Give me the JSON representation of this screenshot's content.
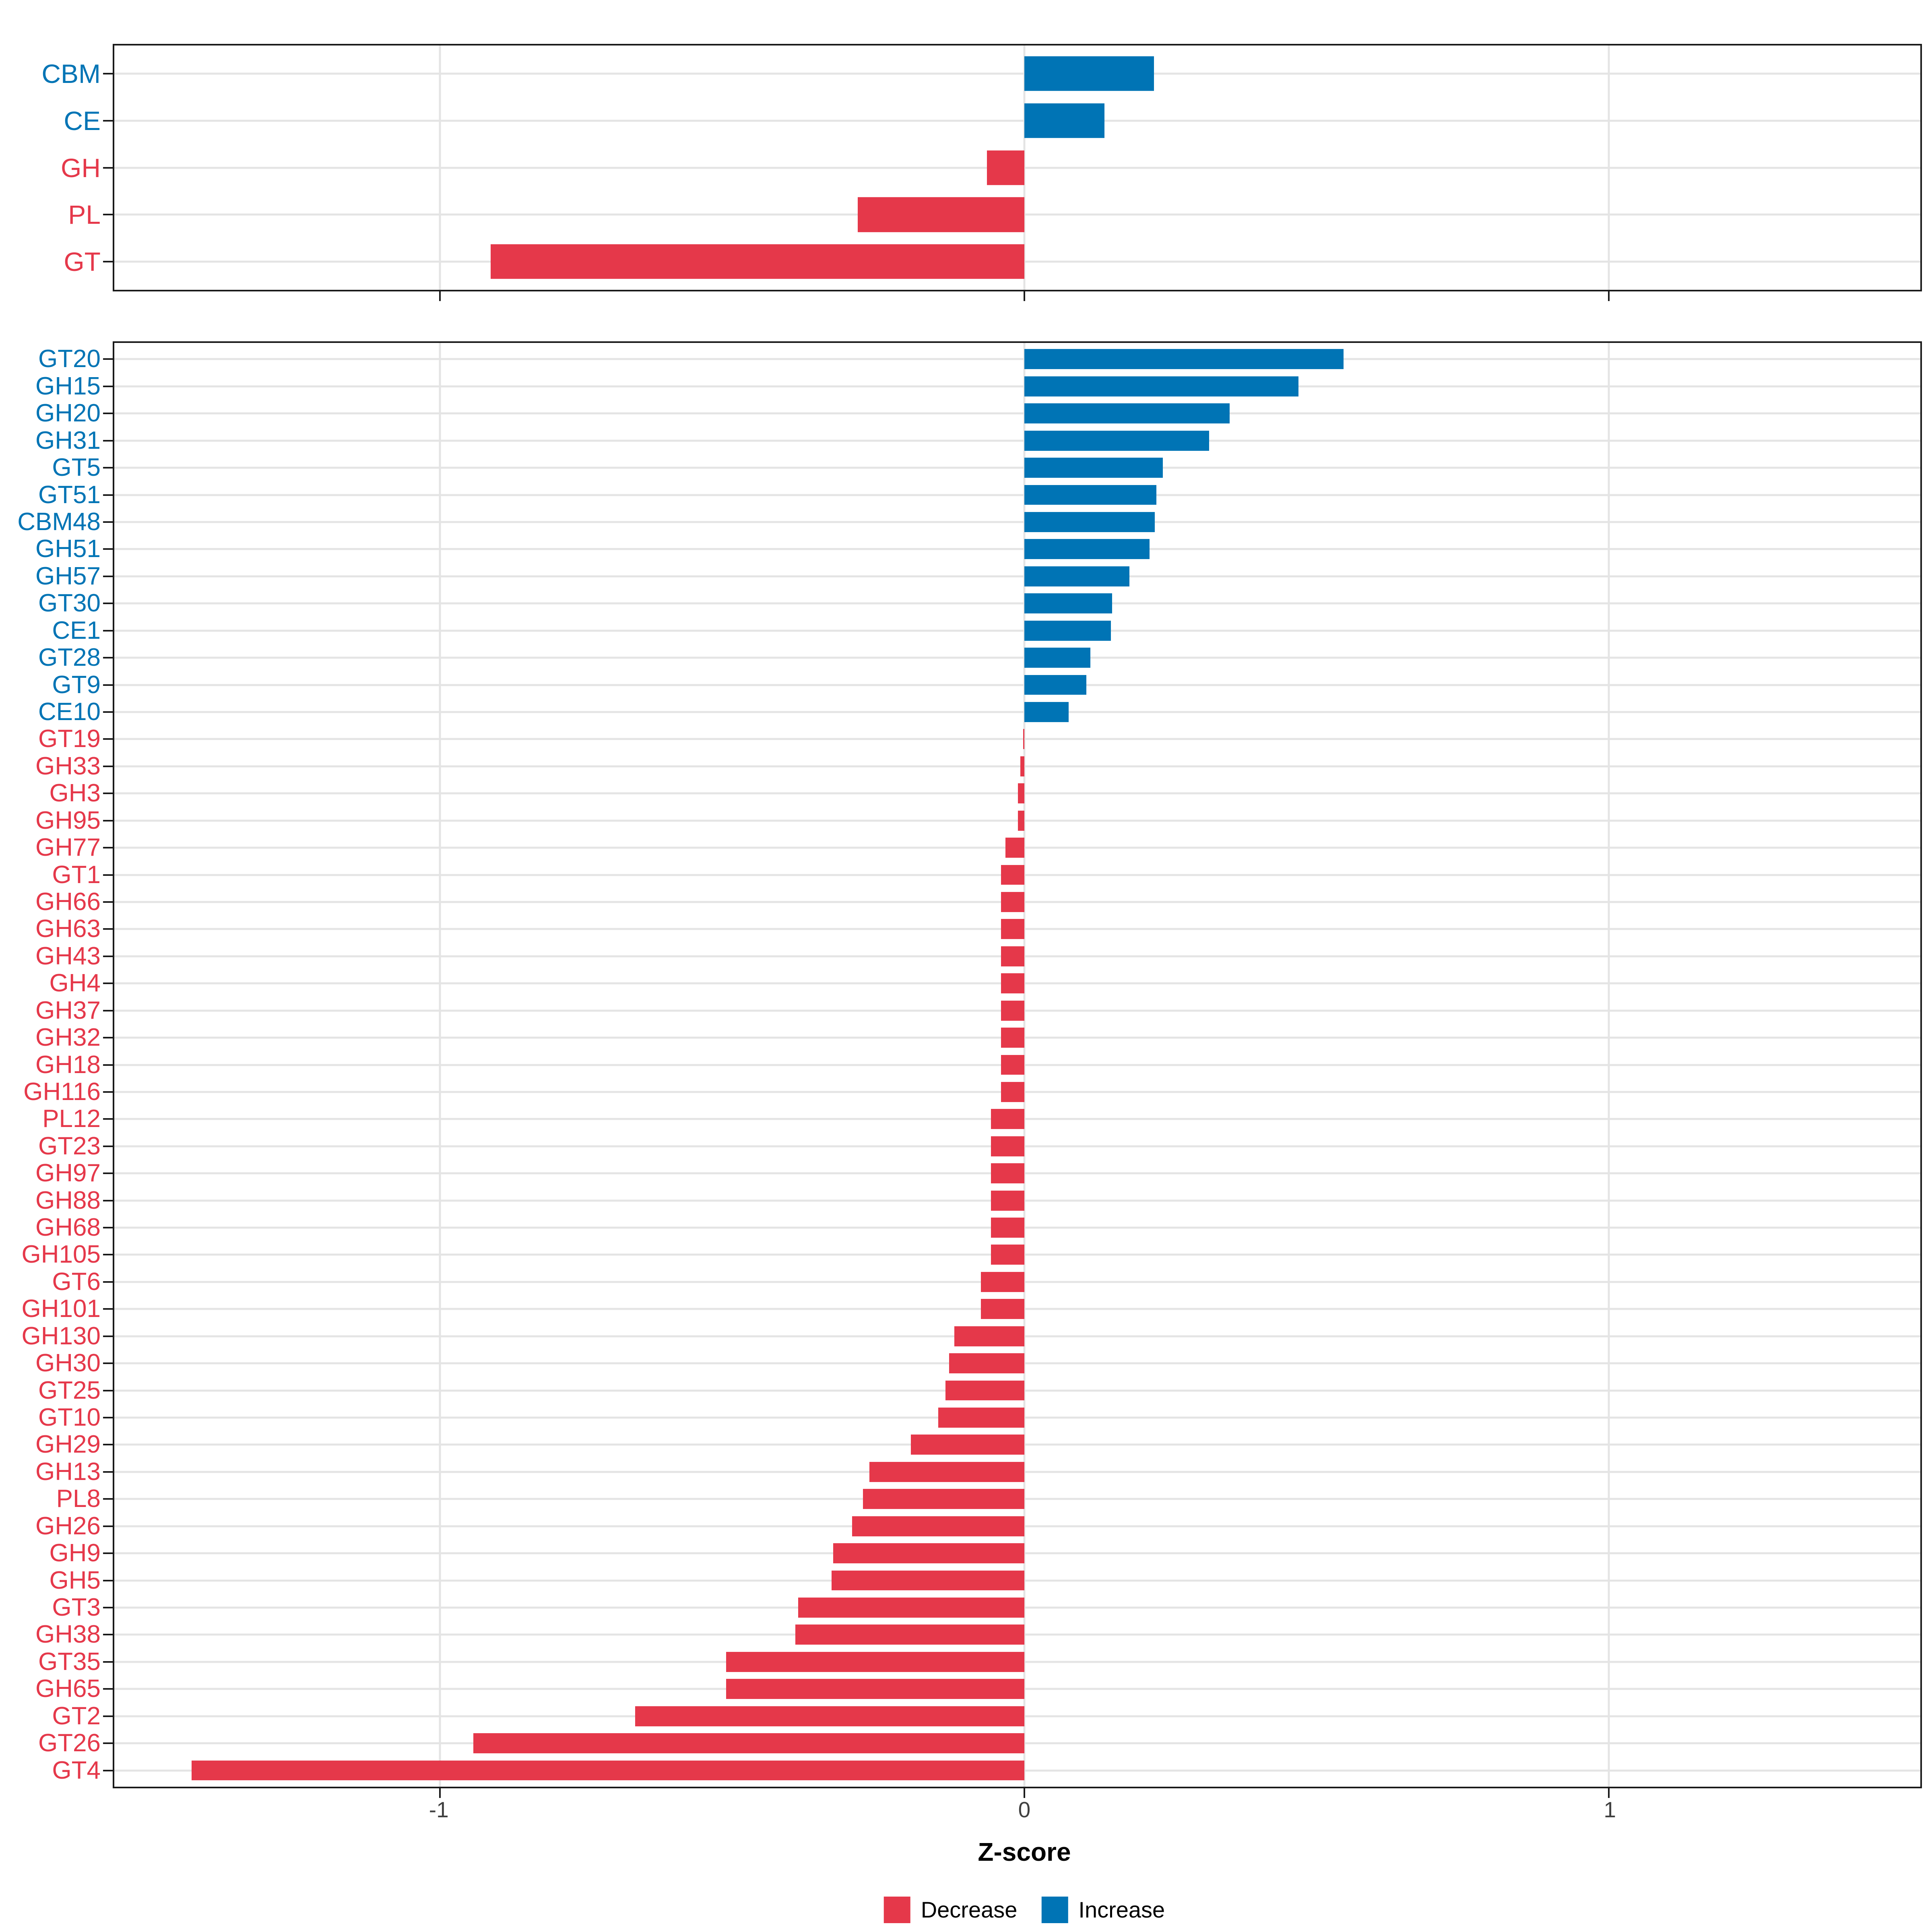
{
  "colors": {
    "decrease": "#E5384A",
    "increase": "#0074B5",
    "grid": "#E4E4E4",
    "axis_line": "#1a1a1a",
    "x_tick_text": "#404040",
    "title_text": "#000000"
  },
  "axis": {
    "label": "Z-score",
    "ticks": [
      -1,
      0,
      1
    ],
    "tick_labels": [
      "-1",
      "0",
      "1"
    ],
    "xmin": -1.557,
    "xmax": 1.533
  },
  "legend": [
    {
      "label": "Decrease",
      "key": "decrease"
    },
    {
      "label": "Increase",
      "key": "increase"
    }
  ],
  "chart_data": [
    {
      "type": "bar",
      "orientation": "horizontal",
      "panel": "families",
      "title": "",
      "xlabel": "Z-score",
      "ylabel": "",
      "xlim": [
        -1.557,
        1.533
      ],
      "grid": true,
      "categories": [
        "CBM",
        "CE",
        "GH",
        "PL",
        "GT"
      ],
      "values": [
        0.222,
        0.137,
        -0.064,
        -0.285,
        -0.913
      ]
    },
    {
      "type": "bar",
      "orientation": "horizontal",
      "panel": "subfamilies",
      "title": "",
      "xlabel": "Z-score",
      "ylabel": "",
      "xlim": [
        -1.557,
        1.533
      ],
      "grid": true,
      "categories": [
        "GT20",
        "GH15",
        "GH20",
        "GH31",
        "GT5",
        "GT51",
        "CBM48",
        "GH51",
        "GH57",
        "GT30",
        "CE1",
        "GT28",
        "GT9",
        "CE10",
        "GT19",
        "GH33",
        "GH3",
        "GH95",
        "GH77",
        "GT1",
        "GH66",
        "GH63",
        "GH43",
        "GH4",
        "GH37",
        "GH32",
        "GH18",
        "GH116",
        "PL12",
        "GT23",
        "GH97",
        "GH88",
        "GH68",
        "GH105",
        "GT6",
        "GH101",
        "GH130",
        "GH30",
        "GT25",
        "GT10",
        "GH29",
        "GH13",
        "PL8",
        "GH26",
        "GH9",
        "GH5",
        "GT3",
        "GH38",
        "GT35",
        "GH65",
        "GT2",
        "GT26",
        "GT4"
      ],
      "values": [
        0.546,
        0.469,
        0.351,
        0.316,
        0.237,
        0.226,
        0.223,
        0.214,
        0.18,
        0.15,
        0.148,
        0.113,
        0.106,
        0.076,
        -0.002,
        -0.007,
        -0.011,
        -0.011,
        -0.032,
        -0.04,
        -0.04,
        -0.04,
        -0.04,
        -0.04,
        -0.04,
        -0.04,
        -0.04,
        -0.04,
        -0.057,
        -0.057,
        -0.057,
        -0.057,
        -0.057,
        -0.057,
        -0.074,
        -0.074,
        -0.12,
        -0.129,
        -0.135,
        -0.147,
        -0.194,
        -0.265,
        -0.276,
        -0.295,
        -0.327,
        -0.33,
        -0.387,
        -0.392,
        -0.51,
        -0.51,
        -0.666,
        -0.943,
        -1.425
      ]
    }
  ]
}
